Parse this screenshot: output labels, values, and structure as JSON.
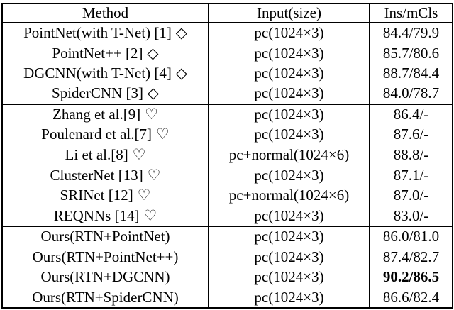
{
  "page": {
    "background_color": "#ffffff",
    "text_color": "#000000",
    "border_color": "#000000"
  },
  "table": {
    "columns": [
      "Method",
      "Input(size)",
      "Ins/mCls"
    ],
    "groups": [
      {
        "marker": "diamond",
        "rows": [
          {
            "method": "PointNet(with T-Net) [1]",
            "symbol": "◇",
            "input": "pc(1024×3)",
            "result": "84.4/79.9"
          },
          {
            "method": "PointNet++ [2]",
            "symbol": "◇",
            "input": "pc(1024×3)",
            "result": "85.7/80.6"
          },
          {
            "method": "DGCNN(with T-Net) [4]",
            "symbol": "◇",
            "input": "pc(1024×3)",
            "result": "88.7/84.4"
          },
          {
            "method": "SpiderCNN [3]",
            "symbol": "◇",
            "input": "pc(1024×3)",
            "result": "84.0/78.7"
          }
        ]
      },
      {
        "marker": "heart",
        "rows": [
          {
            "method": "Zhang et al.[9]",
            "symbol": "♡",
            "input": "pc(1024×3)",
            "result": "86.4/-"
          },
          {
            "method": "Poulenard et al.[7]",
            "symbol": "♡",
            "input": "pc(1024×3)",
            "result": "87.6/-"
          },
          {
            "method": "Li et al.[8]",
            "symbol": "♡",
            "input": "pc+normal(1024×6)",
            "result": "88.8/-"
          },
          {
            "method": "ClusterNet [13]",
            "symbol": "♡",
            "input": "pc(1024×3)",
            "result": "87.1/-"
          },
          {
            "method": "SRINet [12]",
            "symbol": "♡",
            "input": "pc+normal(1024×6)",
            "result": "87.0/-"
          },
          {
            "method": "REQNNs [14]",
            "symbol": "♡",
            "input": "pc(1024×3)",
            "result": "83.0/-"
          }
        ]
      },
      {
        "marker": "none",
        "rows": [
          {
            "method": "Ours(RTN+PointNet)",
            "input": "pc(1024×3)",
            "result": "86.0/81.0"
          },
          {
            "method": "Ours(RTN+PointNet++)",
            "input": "pc(1024×3)",
            "result": "87.4/82.7"
          },
          {
            "method": "Ours(RTN+DGCNN)",
            "input": "pc(1024×3)",
            "result": "90.2/86.5",
            "bold": true
          },
          {
            "method": "Ours(RTN+SpiderCNN)",
            "input": "pc(1024×3)",
            "result": "86.6/82.4"
          }
        ]
      }
    ]
  }
}
